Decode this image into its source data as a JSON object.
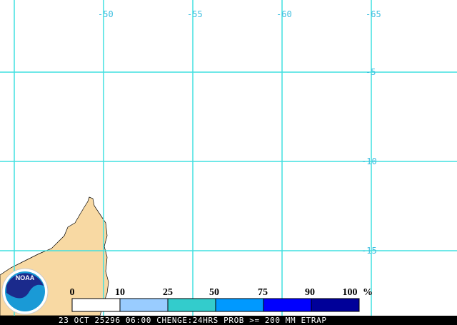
{
  "map": {
    "lon_labels": [
      "-50",
      "-55",
      "-60",
      "-65"
    ],
    "lat_labels": [
      "-5",
      "-10",
      "-15"
    ]
  },
  "legend": {
    "labels": [
      "0",
      "10",
      "25",
      "50",
      "75",
      "90",
      "100"
    ],
    "unit": "%"
  },
  "logo": "NOAA",
  "caption": "23 OCT 25296 06:00 CHENGE:24HRS PROB >= 200 MM ETRAP"
}
